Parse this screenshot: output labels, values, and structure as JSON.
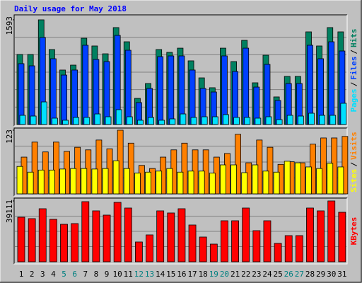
{
  "chart_data": [
    {
      "type": "bar",
      "title": "Daily usage for May 2018",
      "legend_separator": "/",
      "ylim": [
        0,
        1593
      ],
      "yticks": [
        1593
      ],
      "series": [
        {
          "name": "Hits",
          "color": "#008060",
          "values": [
            1066,
            1066,
            1593,
            1141,
            829,
            904,
            1313,
            1195,
            1076,
            1475,
            1259,
            398,
            624,
            1141,
            1098,
            1162,
            969,
            710,
            560,
            1162,
            958,
            1281,
            635,
            1055,
            420,
            732,
            732,
            1410,
            1195,
            1475,
            1410
          ]
        },
        {
          "name": "Files",
          "color": "#0040ff",
          "values": [
            926,
            893,
            1324,
            1001,
            753,
            829,
            1206,
            990,
            958,
            1356,
            1130,
            334,
            549,
            1033,
            1044,
            1044,
            829,
            549,
            495,
            1044,
            807,
            1162,
            570,
            915,
            366,
            624,
            624,
            1206,
            1001,
            1259,
            1119
          ]
        },
        {
          "name": "Pages",
          "color": "#00e0ff",
          "values": [
            140,
            129,
            344,
            97,
            65,
            108,
            108,
            161,
            118,
            226,
            118,
            65,
            108,
            65,
            86,
            161,
            108,
            118,
            118,
            151,
            108,
            108,
            97,
            118,
            75,
            140,
            129,
            172,
            140,
            140,
            323
          ]
        }
      ]
    },
    {
      "type": "bar",
      "ylim": [
        0,
        123
      ],
      "yticks": [
        123
      ],
      "series": [
        {
          "name": "Visits",
          "color": "#ff8000",
          "values": [
            71,
            100,
            81,
            100,
            82,
            90,
            85,
            104,
            87,
            123,
            98,
            55,
            49,
            71,
            85,
            98,
            85,
            85,
            71,
            78,
            115,
            60,
            104,
            90,
            57,
            62,
            60,
            96,
            108,
            108,
            111
          ]
        },
        {
          "name": "Sites",
          "color": "#ffff00",
          "values": [
            53,
            42,
            46,
            46,
            48,
            49,
            49,
            48,
            49,
            64,
            49,
            40,
            42,
            44,
            49,
            42,
            44,
            44,
            40,
            56,
            56,
            41,
            56,
            44,
            42,
            63,
            60,
            52,
            49,
            59,
            52
          ]
        }
      ]
    },
    {
      "type": "bar",
      "ylim": [
        0,
        39111
      ],
      "yticks": [
        39111
      ],
      "categories": [
        "1",
        "2",
        "3",
        "4",
        "5",
        "6",
        "7",
        "8",
        "9",
        "10",
        "11",
        "12",
        "13",
        "14",
        "15",
        "16",
        "17",
        "18",
        "19",
        "20",
        "21",
        "22",
        "23",
        "24",
        "25",
        "26",
        "27",
        "28",
        "29",
        "30",
        "31"
      ],
      "category_colors": [
        "#000000",
        "#000000",
        "#000000",
        "#000000",
        "#008080",
        "#008080",
        "#000000",
        "#000000",
        "#000000",
        "#000000",
        "#000000",
        "#008080",
        "#008080",
        "#000000",
        "#000000",
        "#000000",
        "#000000",
        "#000000",
        "#008080",
        "#008080",
        "#000000",
        "#000000",
        "#000000",
        "#000000",
        "#000000",
        "#008080",
        "#008080",
        "#000000",
        "#000000",
        "#000000",
        "#000000"
      ],
      "series": [
        {
          "name": "KBytes",
          "color": "#ff0000",
          "values": [
            28651,
            27741,
            34108,
            27287,
            24103,
            24558,
            38656,
            32744,
            30015,
            38202,
            34563,
            12734,
            17282,
            32744,
            31380,
            34108,
            23649,
            15917,
            11370,
            26377,
            26377,
            34563,
            20010,
            26377,
            11824,
            16827,
            16827,
            34563,
            32744,
            39111,
            31835
          ]
        }
      ]
    }
  ]
}
